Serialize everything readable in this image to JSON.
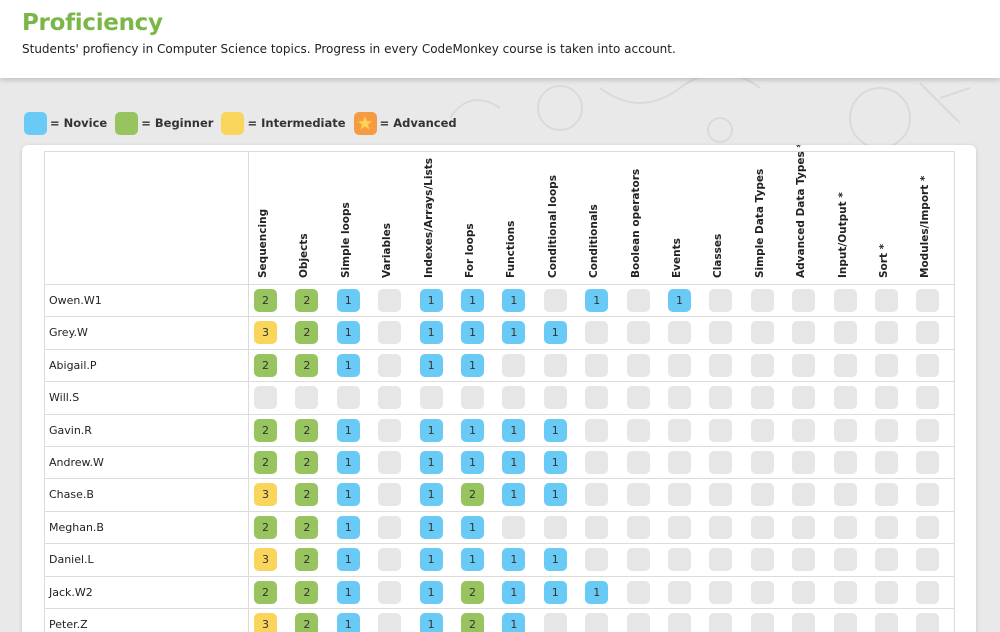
{
  "header": {
    "title": "Proficiency",
    "subtitle": "Students' profiency in Computer Science topics. Progress in every CodeMonkey course is taken into account."
  },
  "legend": [
    {
      "label": "= Novice",
      "color": "#69cbf5",
      "icon": ""
    },
    {
      "label": "= Beginner",
      "color": "#97c45f",
      "icon": ""
    },
    {
      "label": "= Intermediate",
      "color": "#f9d55c",
      "icon": ""
    },
    {
      "label": "= Advanced",
      "color": "#f59c42",
      "icon": "star-icon"
    }
  ],
  "level_colors": {
    "empty": "#e6e6e6",
    "1": "#69cbf5",
    "2": "#97c45f",
    "3": "#f9d55c",
    "4": "#f59c42"
  },
  "columns": [
    "Sequencing",
    "Objects",
    "Simple loops",
    "Variables",
    "Indexes/Arrays/Lists",
    "For loops",
    "Functions",
    "Conditional loops",
    "Conditionals",
    "Boolean operators",
    "Events",
    "Classes",
    "Simple Data Types",
    "Advanced Data Types *",
    "Input/Output *",
    "Sort *",
    "Modules/Import *"
  ],
  "students": [
    {
      "name": "Owen.W1",
      "levels": [
        2,
        2,
        1,
        0,
        1,
        1,
        1,
        0,
        1,
        0,
        1,
        0,
        0,
        0,
        0,
        0,
        0
      ]
    },
    {
      "name": "Grey.W",
      "levels": [
        3,
        2,
        1,
        0,
        1,
        1,
        1,
        1,
        0,
        0,
        0,
        0,
        0,
        0,
        0,
        0,
        0
      ]
    },
    {
      "name": "Abigail.P",
      "levels": [
        2,
        2,
        1,
        0,
        1,
        1,
        0,
        0,
        0,
        0,
        0,
        0,
        0,
        0,
        0,
        0,
        0
      ]
    },
    {
      "name": "Will.S",
      "levels": [
        0,
        0,
        0,
        0,
        0,
        0,
        0,
        0,
        0,
        0,
        0,
        0,
        0,
        0,
        0,
        0,
        0
      ]
    },
    {
      "name": "Gavin.R",
      "levels": [
        2,
        2,
        1,
        0,
        1,
        1,
        1,
        1,
        0,
        0,
        0,
        0,
        0,
        0,
        0,
        0,
        0
      ]
    },
    {
      "name": "Andrew.W",
      "levels": [
        2,
        2,
        1,
        0,
        1,
        1,
        1,
        1,
        0,
        0,
        0,
        0,
        0,
        0,
        0,
        0,
        0
      ]
    },
    {
      "name": "Chase.B",
      "levels": [
        3,
        2,
        1,
        0,
        1,
        2,
        1,
        1,
        0,
        0,
        0,
        0,
        0,
        0,
        0,
        0,
        0
      ]
    },
    {
      "name": "Meghan.B",
      "levels": [
        2,
        2,
        1,
        0,
        1,
        1,
        0,
        0,
        0,
        0,
        0,
        0,
        0,
        0,
        0,
        0,
        0
      ]
    },
    {
      "name": "Daniel.L",
      "levels": [
        3,
        2,
        1,
        0,
        1,
        1,
        1,
        1,
        0,
        0,
        0,
        0,
        0,
        0,
        0,
        0,
        0
      ]
    },
    {
      "name": "Jack.W2",
      "levels": [
        2,
        2,
        1,
        0,
        1,
        2,
        1,
        1,
        1,
        0,
        0,
        0,
        0,
        0,
        0,
        0,
        0
      ]
    },
    {
      "name": "Peter.Z",
      "levels": [
        3,
        2,
        1,
        0,
        1,
        2,
        1,
        0,
        0,
        0,
        0,
        0,
        0,
        0,
        0,
        0,
        0
      ]
    }
  ]
}
